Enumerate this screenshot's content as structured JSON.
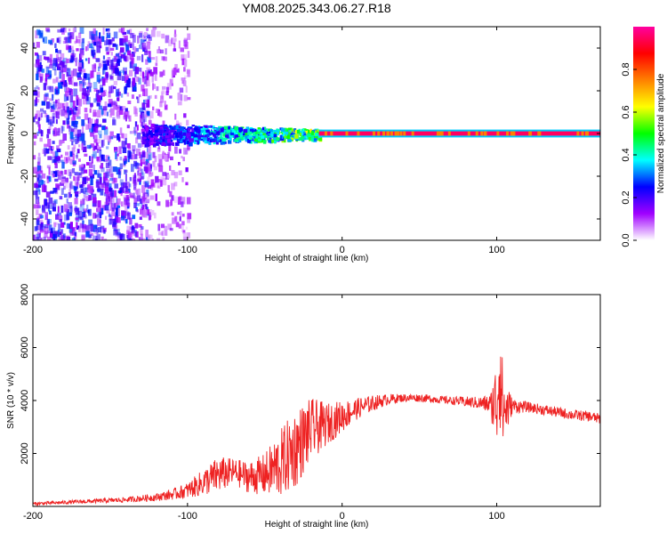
{
  "chart_data": [
    {
      "type": "heatmap",
      "title": "YM08.2025.343.06.27.R18",
      "xlabel": "Height of straight line (km)",
      "ylabel": "Frequency (Hz)",
      "xlim": [
        -200,
        167
      ],
      "ylim": [
        -50,
        50
      ],
      "xticks": [
        -200,
        -100,
        0,
        100
      ],
      "yticks": [
        -40,
        -20,
        0,
        20,
        40
      ],
      "colorbar": {
        "label": "Normalized spectral amplitude",
        "range": [
          0.0,
          1.0
        ],
        "ticks": [
          0.0,
          0.2,
          0.4,
          0.6,
          0.8
        ],
        "tick_labels": [
          "0.0",
          "0.2",
          "0.4",
          "0.6",
          "0.8"
        ],
        "colormap": [
          "#ffffff",
          "#a000ff",
          "#0000ff",
          "#00ffff",
          "#00ff00",
          "#ffff00",
          "#ff8000",
          "#ff0000",
          "#ff00a0"
        ]
      },
      "regions": [
        {
          "x_range": [
            -200,
            -125
          ],
          "freq_range": [
            -50,
            50
          ],
          "amplitude": 0.15,
          "pattern": "diffuse noise"
        },
        {
          "x_range": [
            -130,
            -100
          ],
          "freq_range": [
            -50,
            50
          ],
          "amplitude": 0.08,
          "pattern": "sparse noise"
        },
        {
          "x_range": [
            -130,
            -15
          ],
          "freq_range": [
            -5,
            5
          ],
          "amplitude": 0.35,
          "pattern": "signal band"
        },
        {
          "x_range": [
            -15,
            167
          ],
          "freq_range": [
            -1,
            1
          ],
          "amplitude": 0.95,
          "pattern": "strong steady signal"
        }
      ]
    },
    {
      "type": "line",
      "title": "",
      "xlabel": "Height of straight line (km)",
      "ylabel": "SNR (10 * v/v)",
      "xlim": [
        -200,
        167
      ],
      "ylim": [
        0,
        8000
      ],
      "xticks": [
        -200,
        -100,
        0,
        100
      ],
      "yticks": [
        2000,
        4000,
        6000,
        8000
      ],
      "series": [
        {
          "name": "SNR",
          "color": "#ee2222",
          "x": [
            -200,
            -180,
            -160,
            -140,
            -120,
            -110,
            -100,
            -90,
            -80,
            -70,
            -60,
            -50,
            -40,
            -30,
            -20,
            -10,
            0,
            10,
            20,
            30,
            40,
            50,
            60,
            70,
            80,
            90,
            96,
            100,
            102,
            104,
            110,
            120,
            130,
            140,
            150,
            160,
            167
          ],
          "values": [
            100,
            150,
            200,
            250,
            350,
            450,
            600,
            900,
            1200,
            1300,
            1100,
            1200,
            1600,
            2200,
            2900,
            3100,
            3400,
            3700,
            3900,
            4050,
            4100,
            4100,
            4050,
            4000,
            3950,
            3900,
            3850,
            3900,
            5500,
            3600,
            3800,
            3750,
            3650,
            3550,
            3450,
            3400,
            3300
          ],
          "noise_amplitude": [
            60,
            70,
            80,
            100,
            150,
            200,
            300,
            500,
            700,
            500,
            600,
            800,
            1300,
            1500,
            1200,
            800,
            600,
            400,
            300,
            200,
            150,
            150,
            150,
            150,
            200,
            250,
            400,
            1800,
            2500,
            1500,
            300,
            200,
            200,
            200,
            200,
            200,
            200
          ]
        }
      ]
    }
  ]
}
